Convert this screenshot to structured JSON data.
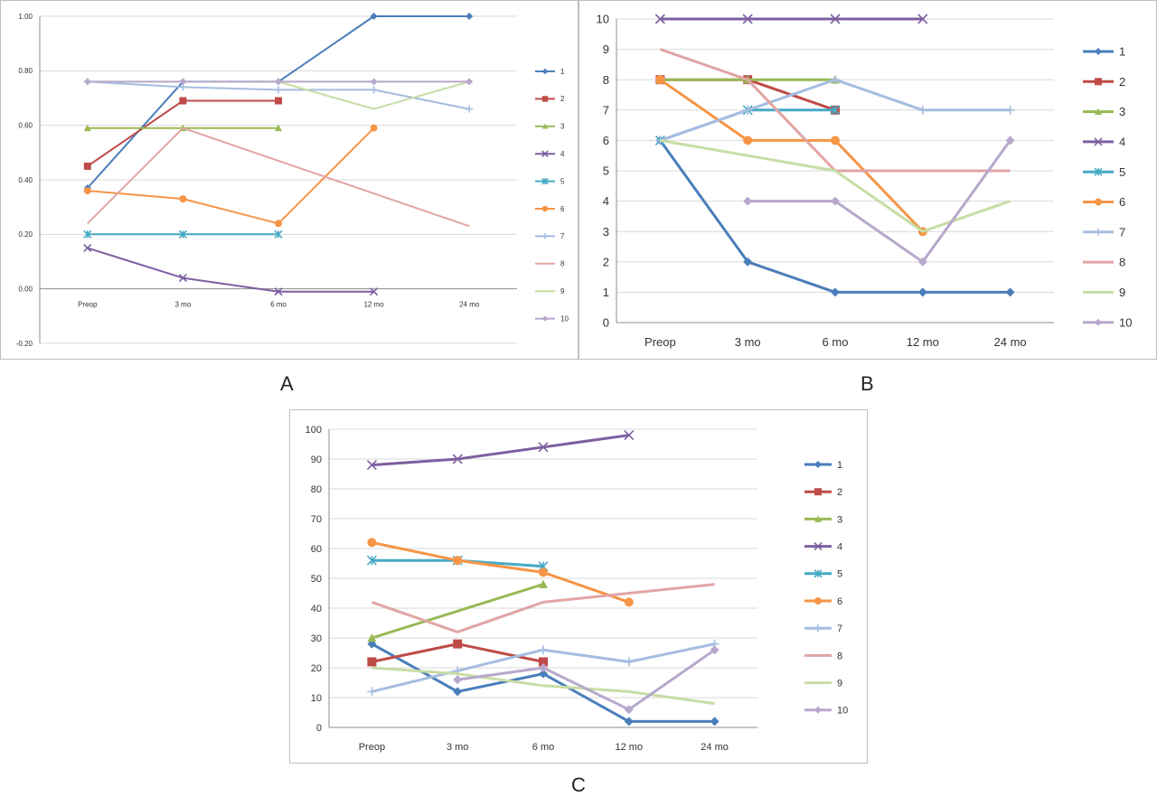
{
  "colors": {
    "1": "#4a7ebb",
    "2": "#be4b48",
    "3": "#98b954",
    "4": "#7d5fa0",
    "5": "#46aac5",
    "6": "#f69546",
    "7": "#a5bde0",
    "8": "#e1a5a4",
    "9": "#c7dda5",
    "10": "#b7a8cc"
  },
  "markers": {
    "1": "diamond",
    "2": "square",
    "3": "triangle",
    "4": "x",
    "5": "star",
    "6": "circle",
    "7": "plus",
    "8": "none",
    "9": "none",
    "10": "diamond"
  },
  "chart_data": [
    {
      "type": "line",
      "panel_label": "A",
      "categories": [
        "Preop",
        "3 mo",
        "6 mo",
        "12 mo",
        "24 mo"
      ],
      "ylim": [
        -0.2,
        1.0
      ],
      "yticks": [
        "-0.20",
        "0.00",
        "0.20",
        "0.40",
        "0.60",
        "0.80",
        "1.00"
      ],
      "ytick_values": [
        -0.2,
        0,
        0.2,
        0.4,
        0.6,
        0.8,
        1.0
      ],
      "grid": true,
      "legend": "right",
      "series": [
        {
          "name": "1",
          "values": [
            0.37,
            0.76,
            0.76,
            1.0,
            1.0
          ]
        },
        {
          "name": "2",
          "values": [
            0.45,
            0.69,
            0.69,
            null,
            null
          ]
        },
        {
          "name": "3",
          "values": [
            0.59,
            0.59,
            0.59,
            null,
            null
          ]
        },
        {
          "name": "4",
          "values": [
            0.15,
            0.04,
            -0.01,
            -0.01,
            null
          ]
        },
        {
          "name": "5",
          "values": [
            0.2,
            0.2,
            0.2,
            null,
            null
          ]
        },
        {
          "name": "6",
          "values": [
            0.36,
            0.33,
            0.24,
            0.59,
            null
          ]
        },
        {
          "name": "7",
          "values": [
            0.76,
            0.74,
            0.73,
            0.73,
            0.66
          ]
        },
        {
          "name": "8",
          "values": [
            0.24,
            0.59,
            null,
            null,
            0.23
          ]
        },
        {
          "name": "9",
          "values": [
            0.76,
            0.76,
            0.76,
            0.66,
            0.76
          ]
        },
        {
          "name": "10",
          "values": [
            0.76,
            0.76,
            0.76,
            0.76,
            0.76
          ]
        }
      ]
    },
    {
      "type": "line",
      "panel_label": "B",
      "categories": [
        "Preop",
        "3 mo",
        "6 mo",
        "12 mo",
        "24 mo"
      ],
      "ylim": [
        0,
        10
      ],
      "yticks": [
        "0",
        "1",
        "2",
        "3",
        "4",
        "5",
        "6",
        "7",
        "8",
        "9",
        "10"
      ],
      "ytick_values": [
        0,
        1,
        2,
        3,
        4,
        5,
        6,
        7,
        8,
        9,
        10
      ],
      "grid": true,
      "legend": "right",
      "series": [
        {
          "name": "1",
          "values": [
            6,
            2,
            1,
            1,
            1
          ]
        },
        {
          "name": "2",
          "values": [
            8,
            8,
            7,
            null,
            null
          ]
        },
        {
          "name": "3",
          "values": [
            8,
            8,
            8,
            null,
            null
          ]
        },
        {
          "name": "4",
          "values": [
            10,
            10,
            10,
            10,
            null
          ]
        },
        {
          "name": "5",
          "values": [
            6,
            7,
            7,
            null,
            null
          ]
        },
        {
          "name": "6",
          "values": [
            8,
            6,
            6,
            3,
            null
          ]
        },
        {
          "name": "7",
          "values": [
            6,
            7,
            8,
            7,
            7
          ]
        },
        {
          "name": "8",
          "values": [
            9,
            8,
            5,
            5,
            5
          ]
        },
        {
          "name": "9",
          "values": [
            6,
            5.5,
            5,
            3,
            4
          ]
        },
        {
          "name": "10",
          "values": [
            null,
            4,
            4,
            2,
            6
          ]
        }
      ]
    },
    {
      "type": "line",
      "panel_label": "C",
      "categories": [
        "Preop",
        "3 mo",
        "6 mo",
        "12 mo",
        "24 mo"
      ],
      "ylim": [
        0,
        100
      ],
      "yticks": [
        "0",
        "10",
        "20",
        "30",
        "40",
        "50",
        "60",
        "70",
        "80",
        "90",
        "100"
      ],
      "ytick_values": [
        0,
        10,
        20,
        30,
        40,
        50,
        60,
        70,
        80,
        90,
        100
      ],
      "grid": true,
      "legend": "right",
      "series": [
        {
          "name": "1",
          "values": [
            28,
            12,
            18,
            2,
            2
          ]
        },
        {
          "name": "2",
          "values": [
            22,
            28,
            22,
            null,
            null
          ]
        },
        {
          "name": "3",
          "values": [
            30,
            null,
            48,
            null,
            null
          ]
        },
        {
          "name": "4",
          "values": [
            88,
            90,
            94,
            98,
            null
          ]
        },
        {
          "name": "5",
          "values": [
            56,
            56,
            54,
            null,
            null
          ]
        },
        {
          "name": "6",
          "values": [
            62,
            56,
            52,
            42,
            null
          ]
        },
        {
          "name": "7",
          "values": [
            12,
            19,
            26,
            22,
            28
          ]
        },
        {
          "name": "8",
          "values": [
            42,
            32,
            42,
            45,
            48
          ]
        },
        {
          "name": "9",
          "values": [
            20,
            18,
            14,
            12,
            8
          ]
        },
        {
          "name": "10",
          "values": [
            null,
            16,
            20,
            6,
            26
          ]
        }
      ]
    }
  ]
}
